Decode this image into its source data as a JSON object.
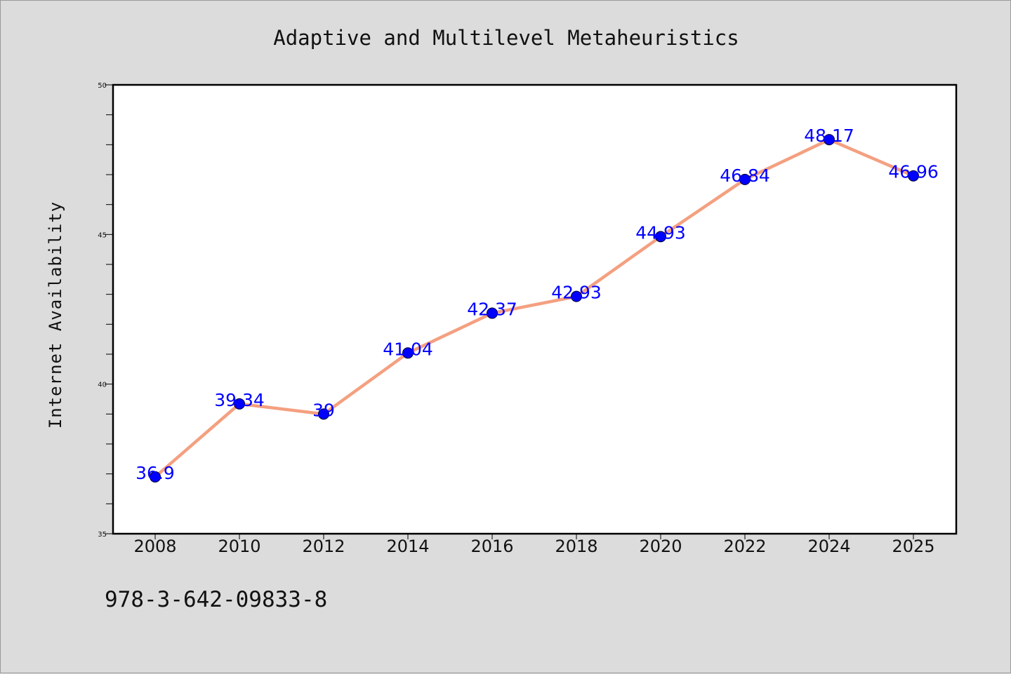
{
  "chart_data": {
    "type": "line",
    "title": "Adaptive and Multilevel Metaheuristics",
    "xlabel": "",
    "ylabel": "Internet Availability",
    "categories": [
      "2008",
      "2010",
      "2012",
      "2014",
      "2016",
      "2018",
      "2020",
      "2022",
      "2024",
      "2025"
    ],
    "series": [
      {
        "values": [
          36.9,
          39.34,
          39,
          41.04,
          42.37,
          42.93,
          44.93,
          46.84,
          48.17,
          46.96
        ],
        "data_labels": [
          "36.9",
          "39.34",
          "39",
          "41.04",
          "42.37",
          "42.93",
          "44.93",
          "46.84",
          "48.17",
          "46.96"
        ],
        "line_color": "#f4a080",
        "marker_color": "#0000ff"
      }
    ],
    "ylim": [
      35,
      50
    ],
    "yticks": [
      35,
      40,
      45,
      50
    ],
    "grid": false,
    "legend": "none"
  },
  "footnote": "978-3-642-09833-8"
}
